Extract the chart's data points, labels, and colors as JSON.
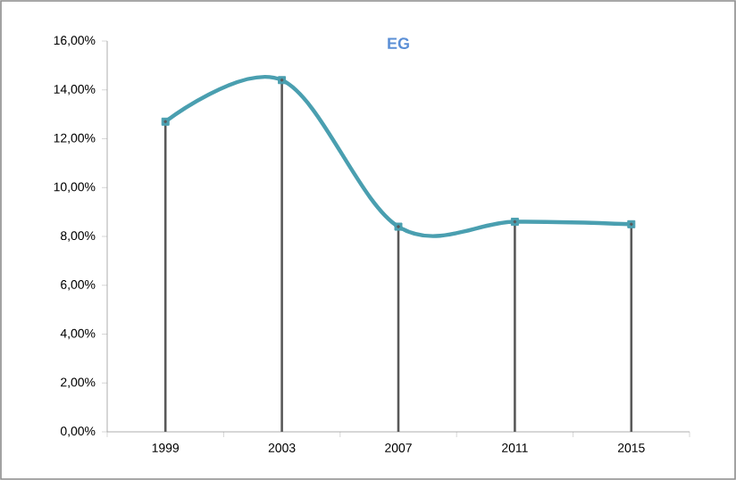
{
  "chart_data": {
    "type": "line",
    "title": "EG",
    "categories": [
      "1999",
      "2003",
      "2007",
      "2011",
      "2015"
    ],
    "series": [
      {
        "color": "#4a9fb0",
        "values": [
          12.7,
          14.4,
          8.4,
          8.6,
          8.5
        ]
      },
      {
        "type": "lollipop",
        "color": "#595959",
        "values": [
          12.7,
          14.4,
          8.4,
          8.6,
          8.5
        ]
      }
    ],
    "ylim": [
      0,
      16
    ],
    "yticks": [
      {
        "value": 0,
        "label": "0,00%"
      },
      {
        "value": 2,
        "label": "2,00%"
      },
      {
        "value": 4,
        "label": "4,00%"
      },
      {
        "value": 6,
        "label": "6,00%"
      },
      {
        "value": 8,
        "label": "8,00%"
      },
      {
        "value": 10,
        "label": "10,00%"
      },
      {
        "value": 12,
        "label": "12,00%"
      },
      {
        "value": 14,
        "label": "14,00%"
      },
      {
        "value": 16,
        "label": "16,00%"
      }
    ],
    "marker": "square"
  }
}
